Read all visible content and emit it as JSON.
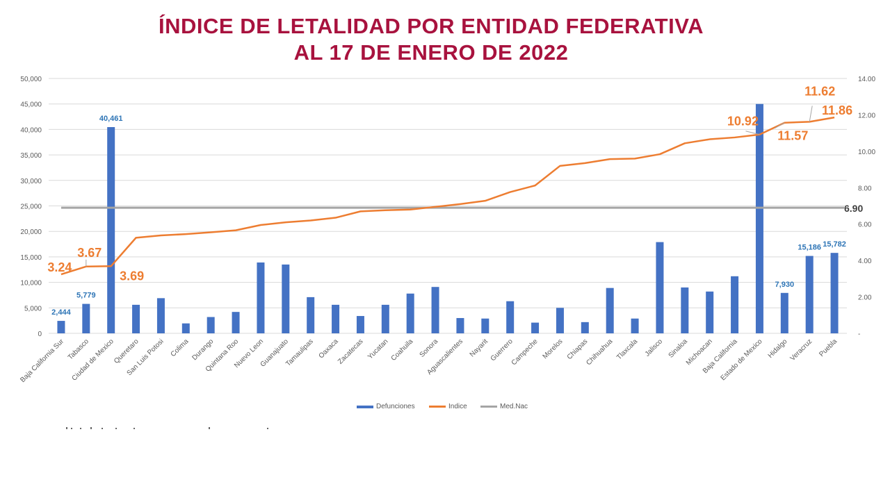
{
  "title_line1": "ÍNDICE  DE  LETALIDAD POR ENTIDAD FEDERATIVA",
  "title_line2": "AL 17 DE ENERO DE 2022",
  "colors": {
    "title": "#a8123e",
    "bars": "#4472c4",
    "index": "#ed7d31",
    "median": "#a5a5a5",
    "bar_labels": "#2e75b6"
  },
  "chart_data": {
    "type": "bar",
    "categories": [
      "Baja California Sur",
      "Tabasco",
      "Ciudad de Mexico",
      "Queretaro",
      "San Luis Potosi",
      "Colima",
      "Durango",
      "Quintana Roo",
      "Nuevo Leon",
      "Guanajuato",
      "Tamaulipas",
      "Oaxaca",
      "Zacatecas",
      "Yucatan",
      "Coahuila",
      "Sonora",
      "Aguascalientes",
      "Nayarit",
      "Guerrero",
      "Campeche",
      "Morelos",
      "Chiapas",
      "Chihuahua",
      "Tlaxcala",
      "Jalisco",
      "Sinaloa",
      "Michoacan",
      "Baja California",
      "Estado de Mexico",
      "Hidalgo",
      "Veracruz",
      "Puebla"
    ],
    "series": [
      {
        "name": "Defunciones",
        "type": "bar",
        "axis": "left",
        "values": [
          2444,
          5779,
          40461,
          5600,
          6900,
          1950,
          3200,
          4200,
          13900,
          13500,
          7100,
          5600,
          3400,
          5600,
          7800,
          9100,
          3000,
          2900,
          6300,
          2100,
          5000,
          2200,
          8900,
          2900,
          17900,
          9000,
          8200,
          11200,
          45000,
          7930,
          15186,
          15782
        ]
      },
      {
        "name": "Indice",
        "type": "line",
        "axis": "right",
        "values": [
          3.24,
          3.67,
          3.69,
          5.25,
          5.38,
          5.45,
          5.55,
          5.66,
          5.95,
          6.1,
          6.2,
          6.35,
          6.7,
          6.76,
          6.8,
          6.95,
          7.1,
          7.28,
          7.76,
          8.12,
          9.2,
          9.35,
          9.57,
          9.6,
          9.84,
          10.44,
          10.66,
          10.76,
          10.92,
          11.57,
          11.62,
          11.86
        ]
      },
      {
        "name": "Med.Nac",
        "type": "line",
        "axis": "right",
        "values": [
          6.9,
          6.9,
          6.9,
          6.9,
          6.9,
          6.9,
          6.9,
          6.9,
          6.9,
          6.9,
          6.9,
          6.9,
          6.9,
          6.9,
          6.9,
          6.9,
          6.9,
          6.9,
          6.9,
          6.9,
          6.9,
          6.9,
          6.9,
          6.9,
          6.9,
          6.9,
          6.9,
          6.9,
          6.9,
          6.9,
          6.9,
          6.9
        ]
      }
    ],
    "bar_data_labels": [
      {
        "index": 0,
        "text": "2,444"
      },
      {
        "index": 1,
        "text": "5,779"
      },
      {
        "index": 2,
        "text": "40,461"
      },
      {
        "index": 29,
        "text": "7,930"
      },
      {
        "index": 30,
        "text": "15,186"
      },
      {
        "index": 31,
        "text": "15,782"
      }
    ],
    "index_data_labels": [
      {
        "index": 0,
        "text": "3.24"
      },
      {
        "index": 1,
        "text": "3.67"
      },
      {
        "index": 2,
        "text": "3.69"
      },
      {
        "index": 28,
        "text": "10.92"
      },
      {
        "index": 29,
        "text": "11.57"
      },
      {
        "index": 30,
        "text": "11.62"
      },
      {
        "index": 31,
        "text": "11.86"
      }
    ],
    "median_label": "6.90",
    "y_left": {
      "min": 0,
      "max": 50000,
      "ticks": [
        "0",
        "5,000",
        "10,000",
        "15,000",
        "20,000",
        "25,000",
        "30,000",
        "35,000",
        "40,000",
        "45,000",
        "50,000"
      ]
    },
    "y_right": {
      "min": 0,
      "max": 14,
      "ticks": [
        "-",
        "2.00",
        "4.00",
        "6.00",
        "8.00",
        "10.00",
        "12.00",
        "14.00"
      ]
    },
    "grid": true,
    "legend_position": "bottom"
  }
}
